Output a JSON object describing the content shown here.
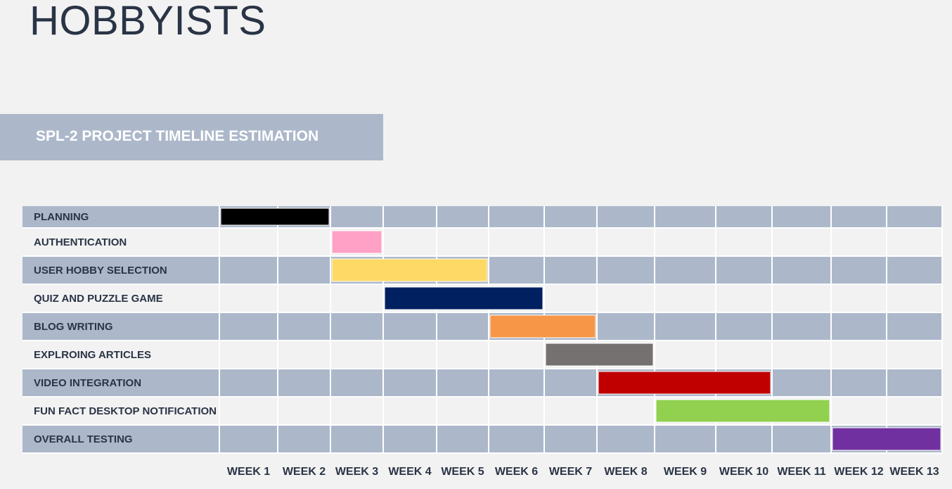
{
  "app": {
    "title": "HOBBYISTS"
  },
  "banner": {
    "title": "SPL-2 PROJECT TIMELINE ESTIMATION"
  },
  "chart_data": {
    "type": "gantt",
    "title": "SPL-2 PROJECT TIMELINE ESTIMATION",
    "weeks": [
      "WEEK 1",
      "WEEK 2",
      "WEEK 3",
      "WEEK 4",
      "WEEK 5",
      "WEEK 6",
      "WEEK 7",
      "WEEK 8",
      "WEEK 9",
      "WEEK 10",
      "WEEK 11",
      "WEEK 12",
      "WEEK 13"
    ],
    "tasks": [
      {
        "name": "PLANNING",
        "start_week": 1,
        "end_week": 2,
        "color": "#000000"
      },
      {
        "name": "AUTHENTICATION",
        "start_week": 3,
        "end_week": 3,
        "color": "#ffa1c6"
      },
      {
        "name": "USER HOBBY SELECTION",
        "start_week": 3,
        "end_week": 5,
        "color": "#ffd966"
      },
      {
        "name": "QUIZ AND PUZZLE GAME",
        "start_week": 4,
        "end_week": 6,
        "color": "#002060"
      },
      {
        "name": "BLOG WRITING",
        "start_week": 6,
        "end_week": 7,
        "color": "#f79646"
      },
      {
        "name": "EXPLROING ARTICLES",
        "start_week": 7,
        "end_week": 8,
        "color": "#767171"
      },
      {
        "name": "VIDEO INTEGRATION",
        "start_week": 8,
        "end_week": 10,
        "color": "#c00000"
      },
      {
        "name": "FUN FACT DESKTOP NOTIFICATION",
        "start_week": 9,
        "end_week": 11,
        "color": "#92d050"
      },
      {
        "name": "OVERALL TESTING",
        "start_week": 12,
        "end_week": 13,
        "color": "#7030a0"
      }
    ],
    "row_colors": {
      "odd": "#acb8ca",
      "even": "#f2f2f2"
    }
  }
}
